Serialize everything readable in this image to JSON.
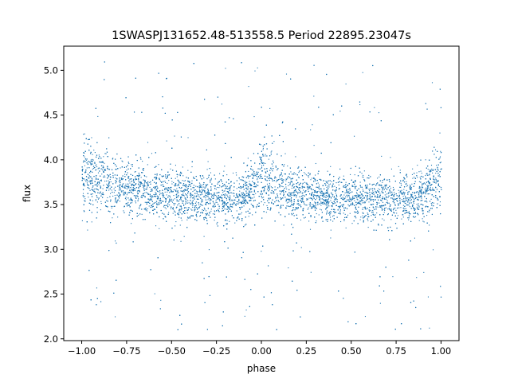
{
  "chart_data": {
    "type": "scatter",
    "title": "1SWASPJ131652.48-513558.5 Period 22895.23047s",
    "xlabel": "phase",
    "ylabel": "flux",
    "xlim": [
      -1.1,
      1.1
    ],
    "ylim": [
      1.98,
      5.27
    ],
    "xticks": [
      -1.0,
      -0.75,
      -0.5,
      -0.25,
      0.0,
      0.25,
      0.5,
      0.75,
      1.0
    ],
    "xtick_labels": [
      "−1.00",
      "−0.75",
      "−0.50",
      "−0.25",
      "0.00",
      "0.25",
      "0.50",
      "0.75",
      "1.00"
    ],
    "yticks": [
      2.0,
      2.5,
      3.0,
      3.5,
      4.0,
      4.5,
      5.0
    ],
    "ytick_labels": [
      "2.0",
      "2.5",
      "3.0",
      "3.5",
      "4.0",
      "4.5",
      "5.0"
    ],
    "grid": false,
    "marker_color": "#1f77b4",
    "series": [
      {
        "x_range": [
          -1.0,
          1.0
        ],
        "baseline_flux": 3.55,
        "trend": [
          [
            -1.0,
            4.05
          ],
          [
            -0.9,
            3.95
          ],
          [
            -0.75,
            3.8
          ],
          [
            -0.5,
            3.65
          ],
          [
            -0.3,
            3.6
          ],
          [
            -0.15,
            3.58
          ],
          [
            -0.05,
            3.85
          ],
          [
            0.0,
            4.1
          ],
          [
            0.05,
            3.95
          ],
          [
            0.15,
            3.75
          ],
          [
            0.3,
            3.65
          ],
          [
            0.5,
            3.6
          ],
          [
            0.7,
            3.55
          ],
          [
            0.85,
            3.6
          ],
          [
            0.95,
            3.85
          ],
          [
            1.0,
            4.1
          ]
        ],
        "flux_range": [
          2.1,
          5.1
        ]
      }
    ]
  }
}
